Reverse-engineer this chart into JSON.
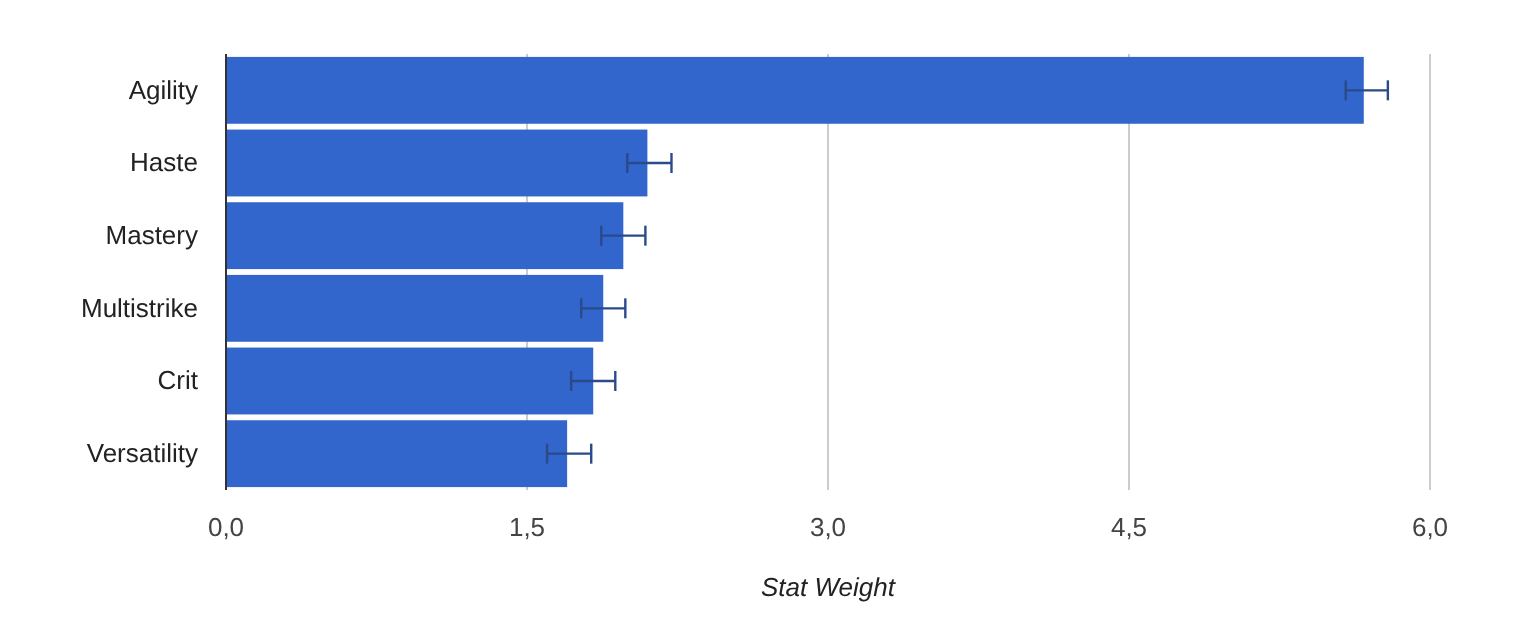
{
  "chart_data": {
    "type": "bar",
    "orientation": "horizontal",
    "xlabel": "Stat Weight",
    "categories": [
      "Agility",
      "Haste",
      "Mastery",
      "Multistrike",
      "Crit",
      "Versatility"
    ],
    "values": [
      5.67,
      2.1,
      1.98,
      1.88,
      1.83,
      1.7
    ],
    "errors": [
      [
        5.58,
        5.79
      ],
      [
        2.0,
        2.22
      ],
      [
        1.87,
        2.09
      ],
      [
        1.77,
        1.99
      ],
      [
        1.72,
        1.94
      ],
      [
        1.6,
        1.82
      ]
    ],
    "color": "#3366cc",
    "xlim": [
      0,
      6
    ],
    "xticks": [
      {
        "value": 0,
        "label": "0,0"
      },
      {
        "value": 1.5,
        "label": "1,5"
      },
      {
        "value": 3,
        "label": "3,0"
      },
      {
        "value": 4.5,
        "label": "4,5"
      },
      {
        "value": 6,
        "label": "6,0"
      }
    ],
    "grid": "x",
    "legend": false
  }
}
